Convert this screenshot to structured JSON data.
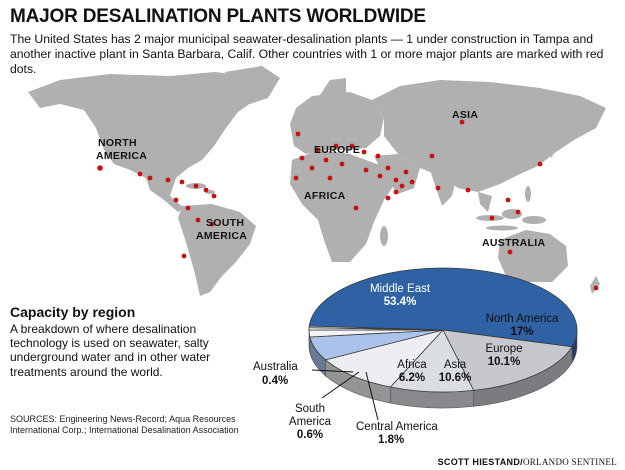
{
  "header": {
    "title": "MAJOR DESALINATION PLANTS WORLDWIDE",
    "intro": "The United States has 2 major municipal seawater-desalination plants — 1 under construction in Tampa and another inactive plant in Santa Barbara, Calif. Other countries with 1 or more major plants are marked with red dots."
  },
  "map": {
    "land_color": "#b0b0b0",
    "dot_color": "#cc1010",
    "regions": {
      "north_america_1": "NORTH",
      "north_america_2": "AMERICA",
      "europe": "EUROPE",
      "asia": "ASIA",
      "africa": "AFRICA",
      "south_america_1": "SOUTH",
      "south_america_2": "AMERICA",
      "australia": "AUSTRALIA"
    }
  },
  "capacity": {
    "title": "Capacity by region",
    "description": "A breakdown of where desalination technology is used on seawater, salty underground water and in other water treatments around the world."
  },
  "sources": "SOURCES: Engineering News-Record; Aqua Resources International Corp.; International Desalination Association",
  "credit": {
    "author": "SCOTT HIESTAND/",
    "paper": "ORLANDO SENTINEL"
  },
  "chart_data": {
    "type": "pie",
    "title": "Capacity by region",
    "unit": "%",
    "slices": [
      {
        "name": "Middle East",
        "value": 53.4,
        "label": "53.4%",
        "color": "#2f62a5"
      },
      {
        "name": "North America",
        "value": 17,
        "label": "17%",
        "color": "#c6c8cd"
      },
      {
        "name": "Europe",
        "value": 10.1,
        "label": "10.1%",
        "color": "#dadde2"
      },
      {
        "name": "Asia",
        "value": 10.6,
        "label": "10.6%",
        "color": "#eceef1"
      },
      {
        "name": "Africa",
        "value": 6.2,
        "label": "6.2%",
        "color": "#a9c3ea"
      },
      {
        "name": "Central America",
        "value": 1.8,
        "label": "1.8%",
        "color": "#f3f4f6"
      },
      {
        "name": "South America",
        "value": 0.6,
        "label": "0.6%",
        "color": "#f3f4f6"
      },
      {
        "name": "Australia",
        "value": 0.4,
        "label": "0.4%",
        "color": "#f3f4f6"
      }
    ]
  }
}
